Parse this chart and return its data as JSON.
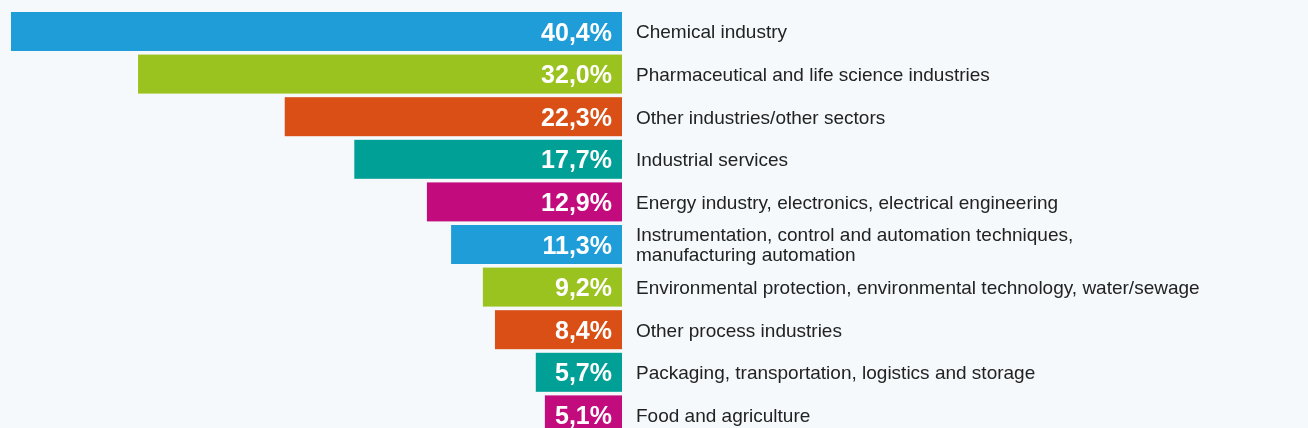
{
  "chart_data": {
    "type": "bar",
    "orientation": "horizontal",
    "categories": [
      "Chemical industry",
      "Pharmaceutical and life science industries",
      "Other industries/other sectors",
      "Industrial services",
      "Energy industry, electronics, electrical engineering",
      "Instrumentation, control and automation techniques,\nmanufacturing automation",
      "Environmental protection, environmental technology, water/sewage",
      "Other process industries",
      "Packaging, transportation, logistics and storage",
      "Food and agriculture"
    ],
    "values": [
      40.4,
      32.0,
      22.3,
      17.7,
      12.9,
      11.3,
      9.2,
      8.4,
      5.7,
      5.1
    ],
    "colors": [
      "#1e9dd9",
      "#9bc31f",
      "#d94f16",
      "#00a096",
      "#c20b7c",
      "#1e9dd9",
      "#9bc31f",
      "#d94f16",
      "#00a096",
      "#c20b7c"
    ],
    "value_labels": [
      "40,4%",
      "32,0%",
      "22,3%",
      "17,7%",
      "12,9%",
      "11,3%",
      "9,2%",
      "8,4%",
      "5,7%",
      "5,1%"
    ]
  }
}
